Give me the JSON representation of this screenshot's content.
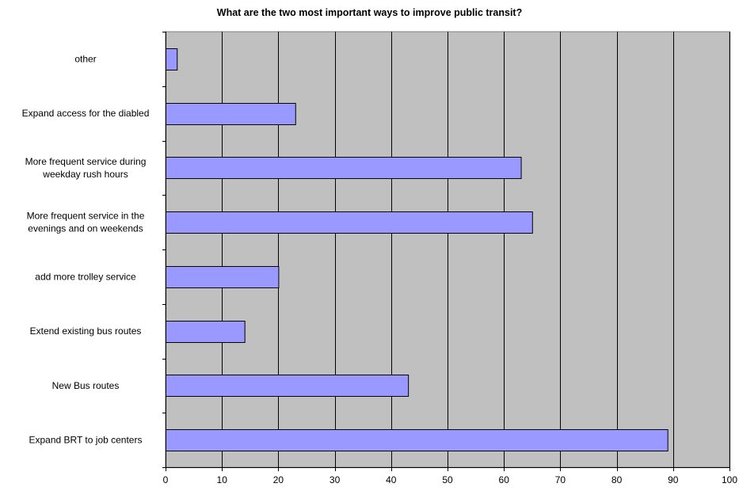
{
  "chart_data": {
    "type": "bar",
    "orientation": "horizontal",
    "title": "What are the two most important ways to improve public transit?",
    "xlabel": "",
    "ylabel": "",
    "categories": [
      "other",
      "Expand access for the diabled",
      "More frequent service during weekday rush hours",
      "More frequent service in the evenings and on weekends",
      "add more trolley service",
      "Extend existing bus routes",
      "New Bus routes",
      "Expand BRT to job centers"
    ],
    "category_label_lines": [
      [
        "other"
      ],
      [
        "Expand access for the diabled"
      ],
      [
        "More frequent service during",
        "weekday rush hours"
      ],
      [
        "More frequent service in the",
        "evenings and on weekends"
      ],
      [
        "add more trolley service"
      ],
      [
        "Extend existing bus routes"
      ],
      [
        "New Bus routes"
      ],
      [
        "Expand BRT to job centers"
      ]
    ],
    "values": [
      2,
      23,
      63,
      65,
      20,
      14,
      43,
      89
    ],
    "xlim": [
      0,
      100
    ],
    "xticks": [
      0,
      10,
      20,
      30,
      40,
      50,
      60,
      70,
      80,
      90,
      100
    ],
    "grid": "vertical",
    "legend": "none",
    "colors": {
      "bar_fill": "#9999ff",
      "bar_stroke": "#000000",
      "plot_background": "#c0c0c0",
      "gridline": "#000000"
    }
  }
}
